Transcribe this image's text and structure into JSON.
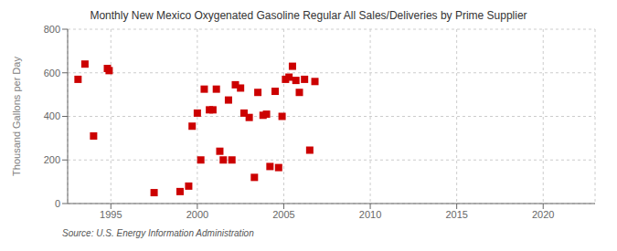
{
  "chart_data": {
    "type": "scatter",
    "title": "Monthly New Mexico Oxygenated Gasoline Regular All Sales/Deliveries by Prime Supplier",
    "ylabel": "Thousand Gallons per Day",
    "annotation": "Source: U.S. Energy Information Administration",
    "color": "#cc0000",
    "marker": "square",
    "grid": true,
    "xlim": [
      1992.5,
      2023
    ],
    "ylim": [
      0,
      800
    ],
    "xticks": [
      1995,
      2000,
      2005,
      2010,
      2015,
      2020
    ],
    "yticks": [
      0,
      200,
      400,
      600,
      800
    ],
    "x": [
      1993.1,
      1993.5,
      1994.0,
      1994.8,
      1994.9,
      1997.5,
      1999.0,
      1999.5,
      1999.7,
      2000.0,
      2000.2,
      2000.4,
      2000.7,
      2000.9,
      2001.1,
      2001.3,
      2001.5,
      2001.8,
      2002.0,
      2002.2,
      2002.5,
      2002.7,
      2003.0,
      2003.3,
      2003.5,
      2003.8,
      2004.0,
      2004.2,
      2004.5,
      2004.7,
      2004.9,
      2005.1,
      2005.3,
      2005.5,
      2005.7,
      2005.9,
      2006.2,
      2006.5,
      2006.8
    ],
    "values": [
      570,
      640,
      310,
      620,
      610,
      50,
      55,
      80,
      355,
      415,
      200,
      525,
      430,
      430,
      525,
      240,
      200,
      475,
      200,
      545,
      530,
      415,
      395,
      120,
      510,
      405,
      410,
      170,
      515,
      165,
      400,
      570,
      580,
      630,
      565,
      510,
      570,
      245,
      560
    ]
  }
}
